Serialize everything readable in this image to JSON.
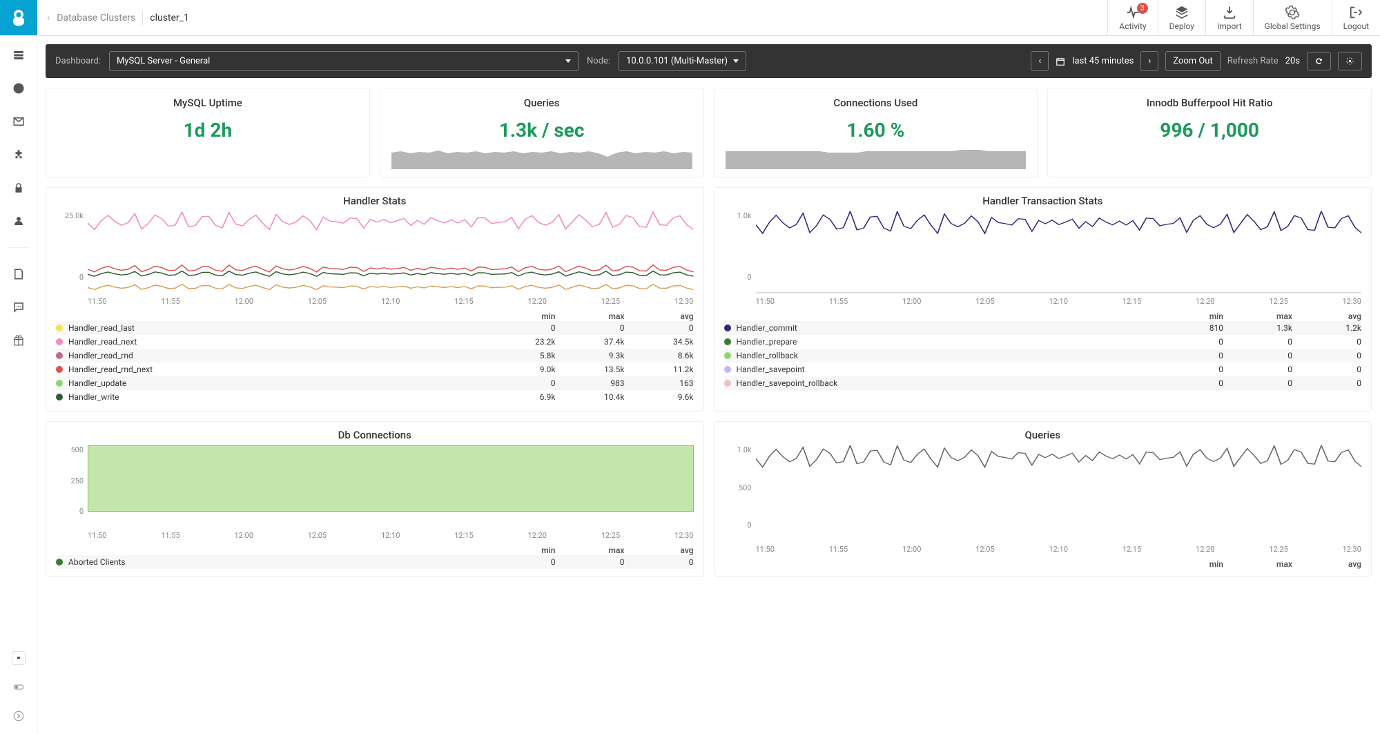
{
  "breadcrumb": {
    "parent": "Database Clusters",
    "current": "cluster_1"
  },
  "topnav": {
    "activity": {
      "label": "Activity",
      "badge": "3"
    },
    "deploy": {
      "label": "Deploy"
    },
    "import": {
      "label": "Import"
    },
    "settings": {
      "label": "Global Settings"
    },
    "logout": {
      "label": "Logout"
    }
  },
  "darkbar": {
    "dashboard_lbl": "Dashboard:",
    "dashboard_sel": "MySQL Server - General",
    "node_lbl": "Node:",
    "node_sel": "10.0.0.101 (Multi-Master)",
    "range": "last 45 minutes",
    "zoom": "Zoom Out",
    "refresh_lbl": "Refresh Rate",
    "refresh_val": "20s"
  },
  "tiles": {
    "uptime": {
      "title": "MySQL Uptime",
      "value": "1d 2h"
    },
    "queries": {
      "title": "Queries",
      "value": "1.3k / sec",
      "spark_color": "#b6b6b6",
      "spark_bg": "#b6b6b6"
    },
    "conn": {
      "title": "Connections Used",
      "value": "1.60 %",
      "spark_color": "#b6b6b6"
    },
    "buf": {
      "title": "Innodb Bufferpool Hit Ratio",
      "value": "996 / 1,000"
    }
  },
  "handler_stats": {
    "title": "Handler Stats",
    "yticks": [
      "25.0k",
      "0"
    ],
    "xticks": [
      "11:50",
      "11:55",
      "12:00",
      "12:05",
      "12:10",
      "12:15",
      "12:20",
      "12:25",
      "12:30"
    ],
    "cols": [
      "min",
      "max",
      "avg"
    ],
    "series": [
      {
        "name": "Handler_read_last",
        "color": "#f5e64a",
        "min": "0",
        "max": "0",
        "avg": "0"
      },
      {
        "name": "Handler_read_next",
        "color": "#f28ac4",
        "min": "23.2k",
        "max": "37.4k",
        "avg": "34.5k"
      },
      {
        "name": "Handler_read_rnd",
        "color": "#ba6e8a",
        "min": "5.8k",
        "max": "9.3k",
        "avg": "8.6k"
      },
      {
        "name": "Handler_read_rnd_next",
        "color": "#d9534f",
        "min": "9.0k",
        "max": "13.5k",
        "avg": "11.2k"
      },
      {
        "name": "Handler_update",
        "color": "#8fd673",
        "min": "0",
        "max": "983",
        "avg": "163"
      },
      {
        "name": "Handler_write",
        "color": "#2e5d35",
        "min": "6.9k",
        "max": "10.4k",
        "avg": "9.6k"
      }
    ]
  },
  "handler_tx": {
    "title": "Handler Transaction Stats",
    "yticks": [
      "1.0k",
      "0"
    ],
    "xticks": [
      "11:50",
      "11:55",
      "12:00",
      "12:05",
      "12:10",
      "12:15",
      "12:20",
      "12:25",
      "12:30"
    ],
    "cols": [
      "min",
      "max",
      "avg"
    ],
    "series": [
      {
        "name": "Handler_commit",
        "color": "#2d2a7b",
        "min": "810",
        "max": "1.3k",
        "avg": "1.2k"
      },
      {
        "name": "Handler_prepare",
        "color": "#3a7a34",
        "min": "0",
        "max": "0",
        "avg": "0"
      },
      {
        "name": "Handler_rollback",
        "color": "#8fd673",
        "min": "0",
        "max": "0",
        "avg": "0"
      },
      {
        "name": "Handler_savepoint",
        "color": "#c5b8f0",
        "min": "0",
        "max": "0",
        "avg": "0"
      },
      {
        "name": "Handler_savepoint_rollback",
        "color": "#f2bfc6",
        "min": "0",
        "max": "0",
        "avg": "0"
      }
    ]
  },
  "db_conn": {
    "title": "Db Connections",
    "yticks": [
      "500",
      "250",
      "0"
    ],
    "xticks": [
      "11:50",
      "11:55",
      "12:00",
      "12:05",
      "12:10",
      "12:15",
      "12:20",
      "12:25",
      "12:30"
    ],
    "cols": [
      "min",
      "max",
      "avg"
    ],
    "series": [
      {
        "name": "Aborted Clients",
        "color": "#3a7a34",
        "min": "0",
        "max": "0",
        "avg": "0"
      }
    ],
    "fill_color": "#c3e6ae"
  },
  "queries_chart": {
    "title": "Queries",
    "yticks": [
      "1.0k",
      "500",
      "0"
    ],
    "xticks": [
      "11:50",
      "11:55",
      "12:00",
      "12:05",
      "12:10",
      "12:15",
      "12:20",
      "12:25",
      "12:30"
    ],
    "cols": [
      "min",
      "max",
      "avg"
    ]
  }
}
